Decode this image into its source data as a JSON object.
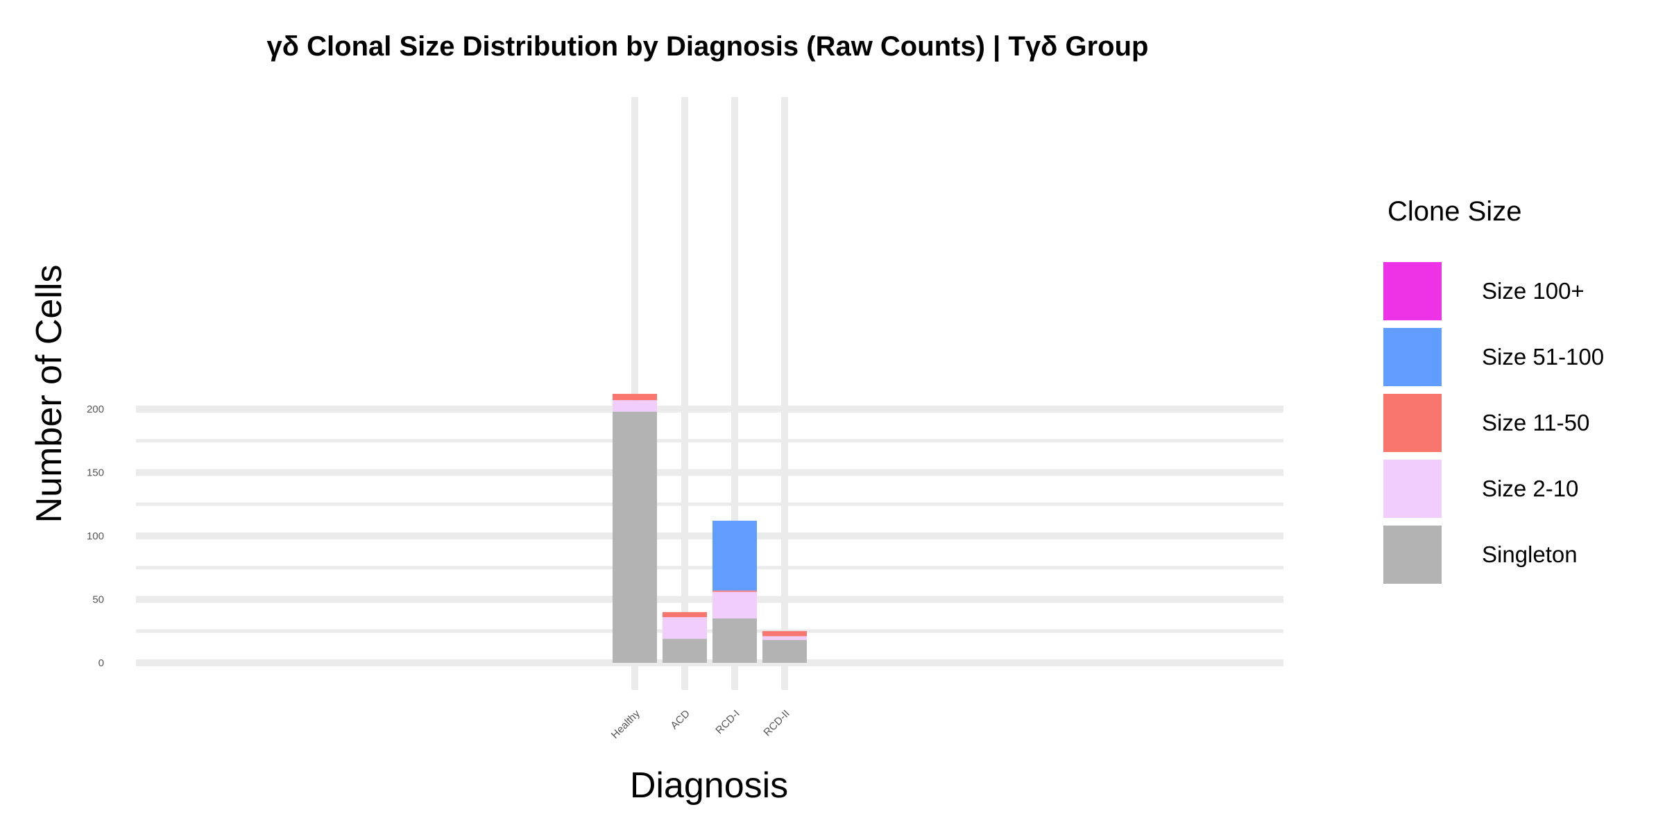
{
  "chart_data": {
    "type": "bar",
    "stacked": true,
    "title": "γδ Clonal Size Distribution by Diagnosis (Raw Counts) | Tγδ Group",
    "xlabel": "Diagnosis",
    "ylabel": "Number of Cells",
    "categories": [
      "Healthy",
      "ACD",
      "RCD-I",
      "RCD-II"
    ],
    "ylim": [
      0,
      225
    ],
    "yticks": [
      0,
      50,
      100,
      150,
      200
    ],
    "grid": true,
    "legend": {
      "title": "Clone Size",
      "position": "right"
    },
    "series": [
      {
        "name": "Singleton",
        "color": "#b3b3b3",
        "values": [
          198,
          19,
          35,
          18
        ]
      },
      {
        "name": "Size 2-10",
        "color": "#f0cdfb",
        "values": [
          9,
          17,
          21,
          3
        ]
      },
      {
        "name": "Size 11-50",
        "color": "#f8766d",
        "values": [
          5,
          4,
          1,
          4
        ]
      },
      {
        "name": "Size 51-100",
        "color": "#619cff",
        "values": [
          0,
          0,
          55,
          0
        ]
      },
      {
        "name": "Size 100+",
        "color": "#ee32e5",
        "values": [
          0,
          0,
          0,
          0
        ]
      }
    ]
  }
}
